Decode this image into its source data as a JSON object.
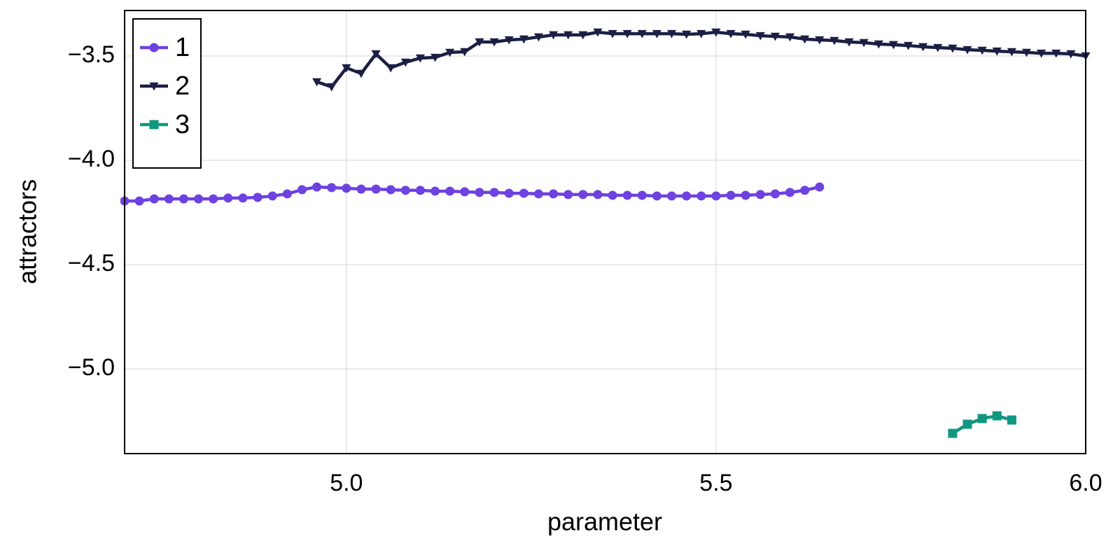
{
  "chart_data": {
    "type": "line",
    "x_label": "parameter",
    "y_label": "attractors",
    "xlim": [
      4.7,
      6.0
    ],
    "ylim": [
      -5.406,
      -3.282
    ],
    "xticks": [
      {
        "value": 5.0,
        "label": "5.0"
      },
      5.5,
      {
        "value": 6.0,
        "label": "6.0"
      }
    ],
    "yticks": [
      {
        "value": -3.5,
        "label": "−3.5"
      },
      {
        "value": -4.0,
        "label": "−4.0"
      },
      {
        "value": -4.5,
        "label": "−4.5"
      },
      {
        "value": -5.0,
        "label": "−5.0"
      }
    ],
    "grid": true,
    "legend": "top-left",
    "series": [
      {
        "name": "1",
        "color": "#6e42e0",
        "marker": "circle",
        "x": [
          4.7,
          4.72,
          4.74,
          4.76,
          4.78,
          4.8,
          4.82,
          4.84,
          4.86,
          4.88,
          4.9,
          4.92,
          4.94,
          4.96,
          4.98,
          5.0,
          5.02,
          5.04,
          5.06,
          5.08,
          5.1,
          5.12,
          5.14,
          5.16,
          5.18,
          5.2,
          5.22,
          5.24,
          5.26,
          5.28,
          5.3,
          5.32,
          5.34,
          5.36,
          5.38,
          5.4,
          5.42,
          5.44,
          5.46,
          5.48,
          5.5,
          5.52,
          5.54,
          5.56,
          5.58,
          5.6,
          5.62,
          5.64
        ],
        "values": [
          -4.195,
          -4.195,
          -4.185,
          -4.185,
          -4.185,
          -4.185,
          -4.185,
          -4.181,
          -4.181,
          -4.178,
          -4.171,
          -4.161,
          -4.141,
          -4.128,
          -4.131,
          -4.134,
          -4.138,
          -4.138,
          -4.141,
          -4.144,
          -4.144,
          -4.148,
          -4.148,
          -4.151,
          -4.154,
          -4.154,
          -4.158,
          -4.158,
          -4.161,
          -4.161,
          -4.164,
          -4.164,
          -4.164,
          -4.168,
          -4.168,
          -4.168,
          -4.171,
          -4.171,
          -4.171,
          -4.171,
          -4.171,
          -4.168,
          -4.168,
          -4.164,
          -4.161,
          -4.154,
          -4.144,
          -4.128
        ]
      },
      {
        "name": "2",
        "color": "#1b1f44",
        "marker": "triangle-down",
        "x": [
          4.96,
          4.98,
          5.0,
          5.02,
          5.04,
          5.06,
          5.08,
          5.1,
          5.12,
          5.14,
          5.16,
          5.18,
          5.2,
          5.22,
          5.24,
          5.26,
          5.28,
          5.3,
          5.32,
          5.34,
          5.36,
          5.38,
          5.4,
          5.42,
          5.44,
          5.46,
          5.48,
          5.5,
          5.52,
          5.54,
          5.56,
          5.58,
          5.6,
          5.62,
          5.64,
          5.66,
          5.68,
          5.7,
          5.72,
          5.74,
          5.76,
          5.78,
          5.8,
          5.82,
          5.84,
          5.86,
          5.88,
          5.9,
          5.92,
          5.94,
          5.96,
          5.98,
          6.0
        ],
        "values": [
          -3.624,
          -3.648,
          -3.557,
          -3.584,
          -3.49,
          -3.557,
          -3.53,
          -3.51,
          -3.507,
          -3.483,
          -3.48,
          -3.433,
          -3.433,
          -3.423,
          -3.419,
          -3.409,
          -3.399,
          -3.399,
          -3.399,
          -3.386,
          -3.393,
          -3.393,
          -3.393,
          -3.393,
          -3.393,
          -3.396,
          -3.393,
          -3.386,
          -3.393,
          -3.396,
          -3.403,
          -3.406,
          -3.409,
          -3.419,
          -3.423,
          -3.426,
          -3.433,
          -3.436,
          -3.443,
          -3.446,
          -3.45,
          -3.456,
          -3.46,
          -3.463,
          -3.47,
          -3.473,
          -3.477,
          -3.48,
          -3.483,
          -3.487,
          -3.487,
          -3.49,
          -3.5
        ]
      },
      {
        "name": "3",
        "color": "#0f977f",
        "marker": "square",
        "x": [
          5.82,
          5.84,
          5.86,
          5.88,
          5.9
        ],
        "values": [
          -5.309,
          -5.265,
          -5.238,
          -5.225,
          -5.245
        ]
      }
    ]
  }
}
